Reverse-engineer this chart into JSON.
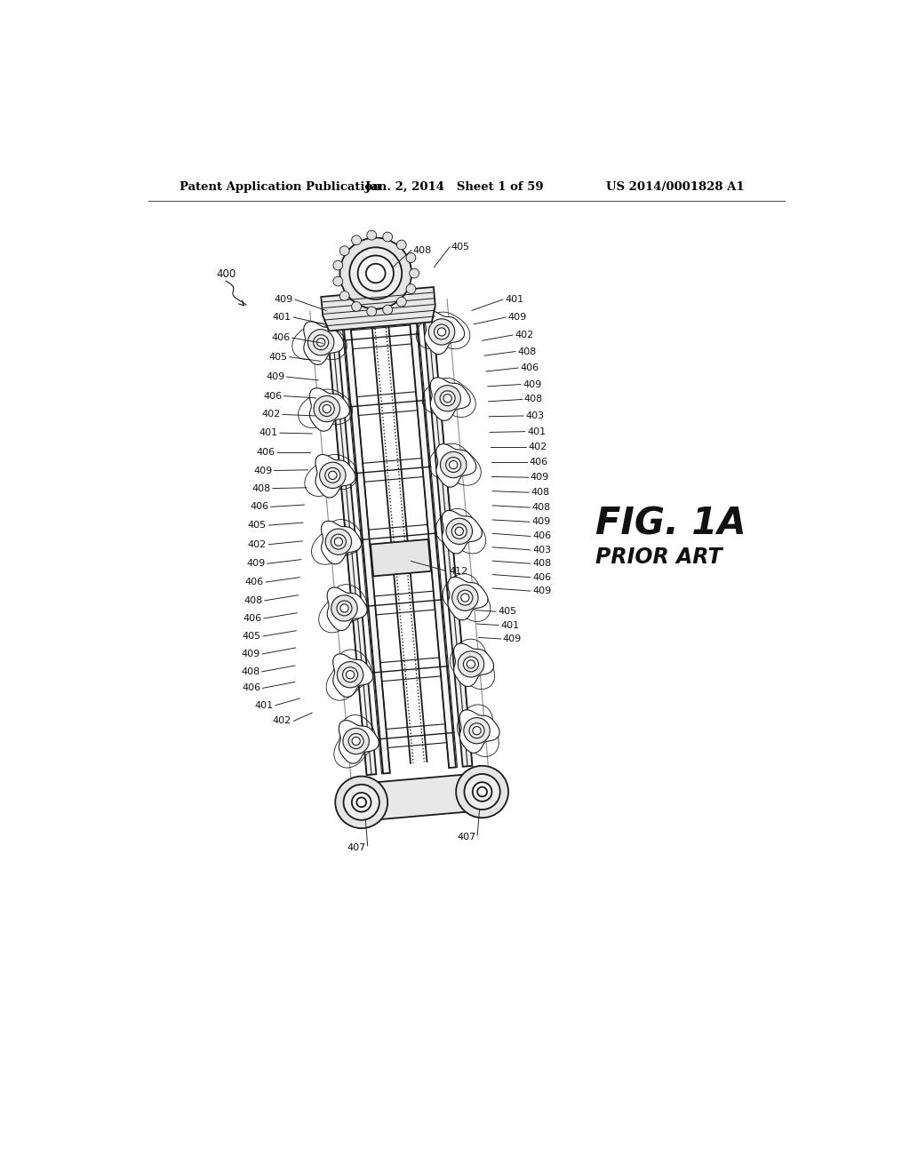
{
  "background_color": "#ffffff",
  "header_line1": "Patent Application Publication",
  "header_line2": "Jan. 2, 2014   Sheet 1 of 59",
  "header_line3": "US 2014/0001828 A1",
  "fig_label": "FIG. 1A",
  "fig_sublabel": "PRIOR ART",
  "lc": "#1a1a1a",
  "lw_main": 1.3,
  "lw_thin": 0.8,
  "lw_med": 1.0,
  "ref_fontsize": 8.0,
  "header_fontsize": 9.5
}
